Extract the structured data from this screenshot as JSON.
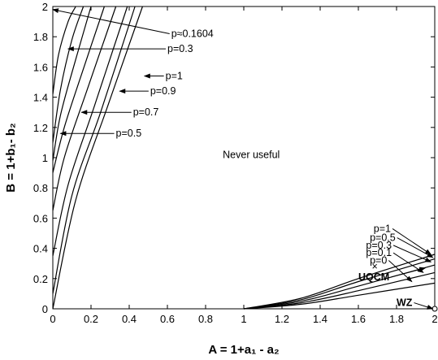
{
  "chart_data": {
    "type": "line",
    "title": "",
    "xlabel": "A = 1+a₁ - a₂",
    "ylabel": "B = 1+b₁- b₂",
    "xlim": [
      0,
      2
    ],
    "ylim": [
      0,
      2
    ],
    "x_ticks": [
      "0",
      "0.2",
      "0.4",
      "0.6",
      "0.8",
      "1",
      "1.2",
      "1.4",
      "1.6",
      "1.8",
      "2"
    ],
    "y_ticks": [
      "0",
      "0.2",
      "0.4",
      "0.6",
      "0.8",
      "1",
      "1.2",
      "1.4",
      "1.6",
      "1.8",
      "2"
    ],
    "grid": false,
    "series_left": [
      {
        "label": "p≈0.1604",
        "points": [
          [
            0,
            1.42
          ],
          [
            0.03,
            1.68
          ],
          [
            0.08,
            1.9
          ],
          [
            0.12,
            2.0
          ]
        ]
      },
      {
        "label": "p=0.3",
        "points": [
          [
            0,
            1.1
          ],
          [
            0.04,
            1.45
          ],
          [
            0.1,
            1.78
          ],
          [
            0.16,
            2.0
          ]
        ]
      },
      {
        "label": "p=1",
        "points": [
          [
            0,
            0.98
          ],
          [
            0.04,
            1.28
          ],
          [
            0.12,
            1.65
          ],
          [
            0.2,
            2.0
          ]
        ]
      },
      {
        "label": "p=0.9",
        "points": [
          [
            0,
            0.9
          ],
          [
            0.06,
            1.2
          ],
          [
            0.15,
            1.55
          ],
          [
            0.27,
            2.0
          ]
        ]
      },
      {
        "label": "p=0.7",
        "points": [
          [
            0,
            0.65
          ],
          [
            0.06,
            1.0
          ],
          [
            0.18,
            1.45
          ],
          [
            0.33,
            2.0
          ]
        ]
      },
      {
        "label": "p=0.5",
        "points": [
          [
            0,
            0.35
          ],
          [
            0.08,
            0.82
          ],
          [
            0.22,
            1.35
          ],
          [
            0.39,
            2.0
          ]
        ]
      },
      {
        "label": "",
        "points": [
          [
            0,
            0.1
          ],
          [
            0.1,
            0.75
          ],
          [
            0.25,
            1.3
          ],
          [
            0.43,
            2.0
          ]
        ]
      },
      {
        "label": "",
        "points": [
          [
            0,
            0.0
          ],
          [
            0.12,
            0.72
          ],
          [
            0.29,
            1.35
          ],
          [
            0.47,
            2.0
          ]
        ]
      }
    ],
    "series_right": [
      {
        "label": "p=1",
        "points": [
          [
            1.0,
            0.0
          ],
          [
            1.3,
            0.07
          ],
          [
            1.6,
            0.2
          ],
          [
            2.0,
            0.36
          ]
        ]
      },
      {
        "label": "p=0.5",
        "points": [
          [
            1.0,
            0.0
          ],
          [
            1.3,
            0.06
          ],
          [
            1.6,
            0.18
          ],
          [
            2.0,
            0.33
          ]
        ]
      },
      {
        "label": "p=0.3",
        "points": [
          [
            1.0,
            0.0
          ],
          [
            1.3,
            0.05
          ],
          [
            1.6,
            0.15
          ],
          [
            2.0,
            0.29
          ]
        ]
      },
      {
        "label": "p=0.1",
        "points": [
          [
            1.0,
            0.0
          ],
          [
            1.3,
            0.04
          ],
          [
            1.6,
            0.12
          ],
          [
            2.0,
            0.24
          ]
        ]
      },
      {
        "label": "p=0",
        "points": [
          [
            1.0,
            0.0
          ],
          [
            1.3,
            0.03
          ],
          [
            1.6,
            0.09
          ],
          [
            2.0,
            0.17
          ]
        ]
      }
    ],
    "annotations": [
      {
        "text": "p≈0.1604",
        "x": 0.62,
        "y": 1.82,
        "arrow_to": [
          0.0,
          1.98
        ]
      },
      {
        "text": "p=0.3",
        "x": 0.6,
        "y": 1.72,
        "arrow_to": [
          0.08,
          1.72
        ]
      },
      {
        "text": "p=1",
        "x": 0.59,
        "y": 1.54,
        "arrow_to": [
          0.48,
          1.54
        ]
      },
      {
        "text": "p=0.9",
        "x": 0.51,
        "y": 1.44,
        "arrow_to": [
          0.35,
          1.44
        ]
      },
      {
        "text": "p=0.7",
        "x": 0.42,
        "y": 1.3,
        "arrow_to": [
          0.15,
          1.3
        ]
      },
      {
        "text": "p=0.5",
        "x": 0.33,
        "y": 1.16,
        "arrow_to": [
          0.04,
          1.16
        ]
      },
      {
        "text": "Never useful",
        "x": 0.89,
        "y": 1.02
      },
      {
        "text": "p=1",
        "x": 1.68,
        "y": 0.53,
        "arrow_to": [
          1.98,
          0.36
        ]
      },
      {
        "text": "p=0.5",
        "x": 1.66,
        "y": 0.47,
        "arrow_to": [
          1.99,
          0.34
        ]
      },
      {
        "text": "p=0.3",
        "x": 1.64,
        "y": 0.42,
        "arrow_to": [
          1.98,
          0.31
        ]
      },
      {
        "text": "p=0.1",
        "x": 1.64,
        "y": 0.37,
        "arrow_to": [
          1.94,
          0.24
        ]
      },
      {
        "text": "p=0",
        "x": 1.66,
        "y": 0.32,
        "arrow_to": [
          1.88,
          0.18
        ]
      },
      {
        "text": "×",
        "x": 1.67,
        "y": 0.28
      },
      {
        "text": "UQCM",
        "x": 1.6,
        "y": 0.21,
        "arrow_to": [
          1.95,
          0.27
        ]
      },
      {
        "text": "WZ",
        "x": 1.8,
        "y": 0.04,
        "arrow_to": [
          1.99,
          0.0
        ]
      }
    ]
  }
}
